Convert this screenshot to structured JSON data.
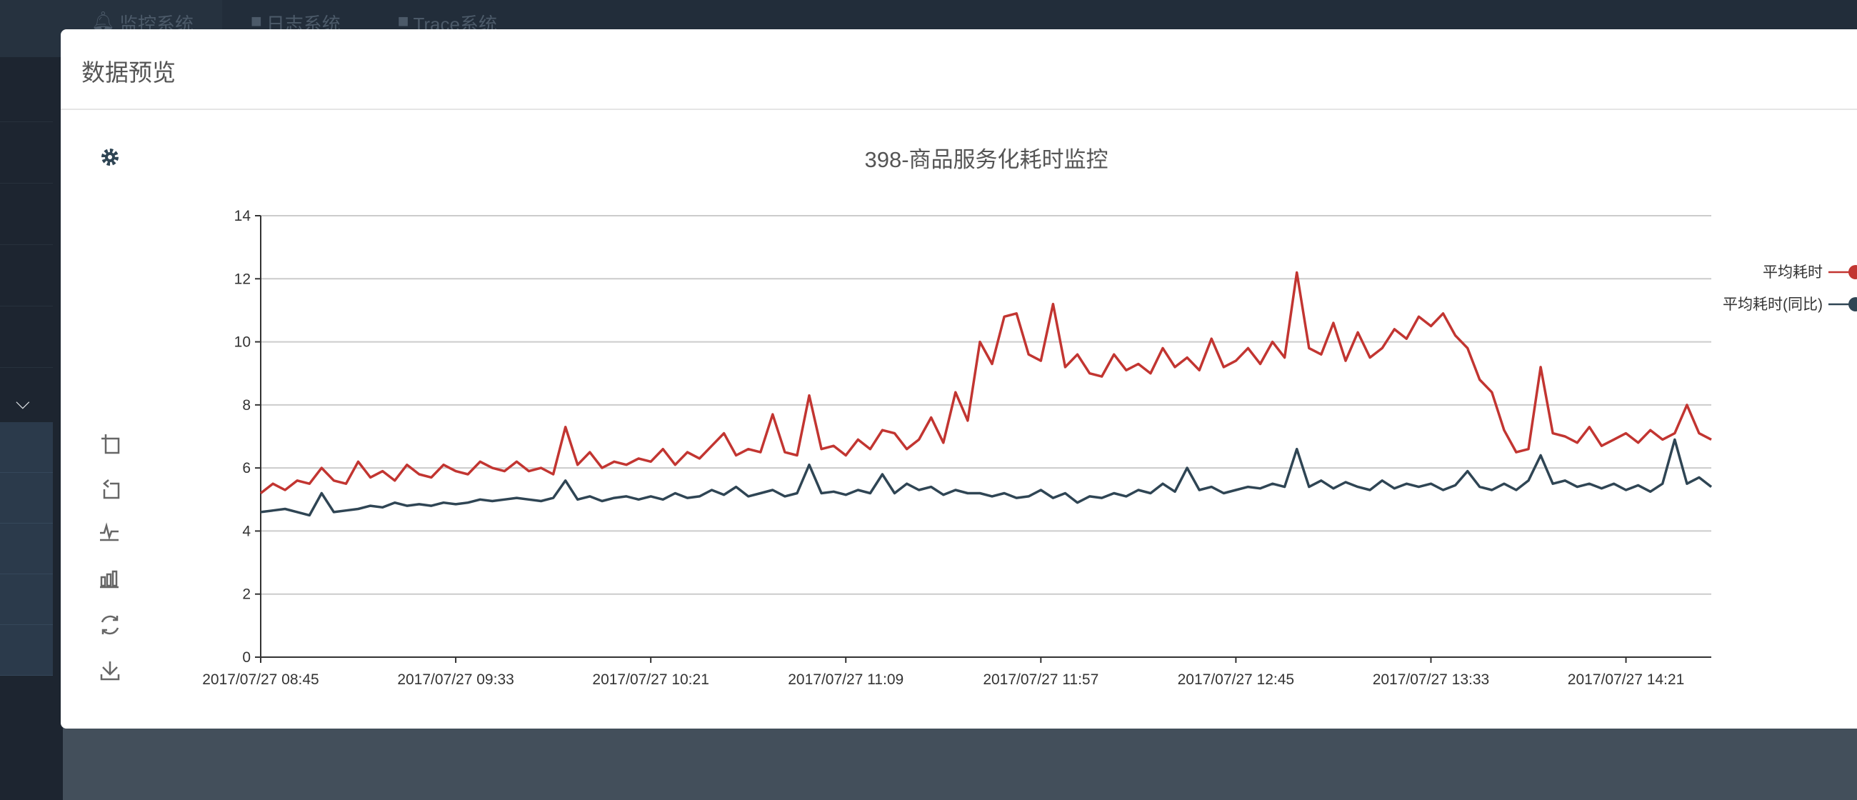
{
  "topnav": {
    "tabs": [
      {
        "icon": "bell-icon",
        "label": "监控系统"
      },
      {
        "icon": "file-icon",
        "label": "日志系统"
      },
      {
        "icon": "file-icon",
        "label": "Trace系统"
      }
    ]
  },
  "modal": {
    "title": "数据预览"
  },
  "toolbox": {
    "items": [
      "restore-icon",
      "zoom-icon",
      "zoom-reset-icon",
      "line-chart-icon",
      "bar-chart-icon",
      "refresh-icon",
      "download-icon"
    ]
  },
  "colors": {
    "series1": "#c23531",
    "series2": "#2f4554"
  },
  "chart_data": {
    "type": "line",
    "title": "398-商品服务化耗时监控",
    "xlabel": "",
    "ylabel": "",
    "ylim": [
      0,
      14
    ],
    "yticks": [
      "0",
      "2",
      "4",
      "6",
      "8",
      "10",
      "12",
      "14"
    ],
    "x_start": "2017/07/27 08:45",
    "x_step_minutes": 3,
    "xticks": [
      "2017/07/27 08:45",
      "2017/07/27 09:33",
      "2017/07/27 10:21",
      "2017/07/27 11:09",
      "2017/07/27 11:57",
      "2017/07/27 12:45",
      "2017/07/27 13:33",
      "2017/07/27 14:21"
    ],
    "xtick_every": 16,
    "grid": true,
    "legend_position": "right",
    "series": [
      {
        "name": "平均耗时",
        "values": [
          5.2,
          5.5,
          5.3,
          5.6,
          5.5,
          6.0,
          5.6,
          5.5,
          6.2,
          5.7,
          5.9,
          5.6,
          6.1,
          5.8,
          5.7,
          6.1,
          5.9,
          5.8,
          6.2,
          6.0,
          5.9,
          6.2,
          5.9,
          6.0,
          5.8,
          7.3,
          6.1,
          6.5,
          6.0,
          6.2,
          6.1,
          6.3,
          6.2,
          6.6,
          6.1,
          6.5,
          6.3,
          6.7,
          7.1,
          6.4,
          6.6,
          6.5,
          7.7,
          6.5,
          6.4,
          8.3,
          6.6,
          6.7,
          6.4,
          6.9,
          6.6,
          7.2,
          7.1,
          6.6,
          6.9,
          7.6,
          6.8,
          8.4,
          7.5,
          10.0,
          9.3,
          10.8,
          10.9,
          9.6,
          9.4,
          11.2,
          9.2,
          9.6,
          9.0,
          8.9,
          9.6,
          9.1,
          9.3,
          9.0,
          9.8,
          9.2,
          9.5,
          9.1,
          10.1,
          9.2,
          9.4,
          9.8,
          9.3,
          10.0,
          9.5,
          12.2,
          9.8,
          9.6,
          10.6,
          9.4,
          10.3,
          9.5,
          9.8,
          10.4,
          10.1,
          10.8,
          10.5,
          10.9,
          10.2,
          9.8,
          8.8,
          8.4,
          7.2,
          6.5,
          6.6,
          9.2,
          7.1,
          7.0,
          6.8,
          7.3,
          6.7,
          6.9,
          7.1,
          6.8,
          7.2,
          6.9,
          7.1,
          8.0,
          7.1,
          6.9
        ]
      },
      {
        "name": "平均耗时(同比)",
        "values": [
          4.6,
          4.65,
          4.7,
          4.6,
          4.5,
          5.2,
          4.6,
          4.65,
          4.7,
          4.8,
          4.75,
          4.9,
          4.8,
          4.85,
          4.8,
          4.9,
          4.85,
          4.9,
          5.0,
          4.95,
          5.0,
          5.05,
          5.0,
          4.95,
          5.05,
          5.6,
          5.0,
          5.1,
          4.95,
          5.05,
          5.1,
          5.0,
          5.1,
          5.0,
          5.2,
          5.05,
          5.1,
          5.3,
          5.15,
          5.4,
          5.1,
          5.2,
          5.3,
          5.1,
          5.2,
          6.1,
          5.2,
          5.25,
          5.15,
          5.3,
          5.2,
          5.8,
          5.2,
          5.5,
          5.3,
          5.4,
          5.15,
          5.3,
          5.2,
          5.2,
          5.1,
          5.2,
          5.05,
          5.1,
          5.3,
          5.05,
          5.2,
          4.9,
          5.1,
          5.05,
          5.2,
          5.1,
          5.3,
          5.2,
          5.5,
          5.25,
          6.0,
          5.3,
          5.4,
          5.2,
          5.3,
          5.4,
          5.35,
          5.5,
          5.4,
          6.6,
          5.4,
          5.6,
          5.35,
          5.55,
          5.4,
          5.3,
          5.6,
          5.35,
          5.5,
          5.4,
          5.5,
          5.3,
          5.45,
          5.9,
          5.4,
          5.3,
          5.5,
          5.3,
          5.6,
          6.4,
          5.5,
          5.6,
          5.4,
          5.5,
          5.35,
          5.5,
          5.3,
          5.45,
          5.25,
          5.5,
          6.9,
          5.5,
          5.7,
          5.4
        ]
      }
    ]
  }
}
